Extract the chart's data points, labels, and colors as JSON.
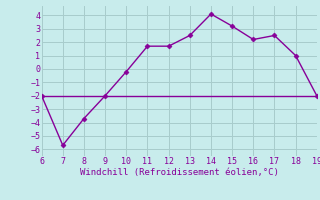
{
  "xlabel": "Windchill (Refroidissement éolien,°C)",
  "x_line": [
    6,
    7,
    8,
    9,
    10,
    11,
    12,
    13,
    14,
    15,
    16,
    17,
    18,
    19
  ],
  "y_line1": [
    -2,
    -2,
    -2,
    -2,
    -2,
    -2,
    -2,
    -2,
    -2,
    -2,
    -2,
    -2,
    -2,
    -2
  ],
  "y_line2": [
    -2,
    -5.7,
    -3.7,
    -2,
    -0.2,
    1.7,
    1.7,
    2.5,
    4.1,
    3.2,
    2.2,
    2.5,
    1.0,
    -2
  ],
  "line_color": "#880099",
  "bg_color": "#c8ecec",
  "grid_color": "#a8cccc",
  "xlim": [
    6,
    19
  ],
  "ylim": [
    -6.5,
    4.7
  ],
  "xticks": [
    6,
    7,
    8,
    9,
    10,
    11,
    12,
    13,
    14,
    15,
    16,
    17,
    18,
    19
  ],
  "yticks": [
    -6,
    -5,
    -4,
    -3,
    -2,
    -1,
    0,
    1,
    2,
    3,
    4
  ],
  "marker": "D",
  "markersize": 2.5,
  "linewidth": 1.0,
  "tick_fontsize": 6.0,
  "xlabel_fontsize": 6.5
}
